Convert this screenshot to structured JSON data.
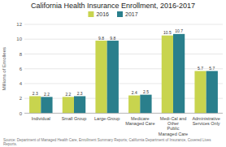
{
  "chart_data": {
    "type": "bar",
    "title": "California Health Insurance Enrollment, 2016-2017",
    "categories": [
      "Individual",
      "Small Group",
      "Large-Group",
      "Medicare\nManaged Care",
      "Medi-Cal and Other\nPublic Managed Care",
      "Administrative\nServices Only"
    ],
    "series": [
      {
        "name": "2016",
        "color": "#c8d44e",
        "values": [
          2.3,
          2.2,
          9.8,
          2.4,
          10.5,
          5.7
        ]
      },
      {
        "name": "2017",
        "color": "#2a7f8c",
        "values": [
          2.2,
          2.3,
          9.8,
          2.5,
          10.7,
          5.7
        ]
      }
    ],
    "ylabel": "Millions of Enrollees",
    "ylim": [
      0,
      12
    ],
    "yticks": [
      0,
      2,
      4,
      6,
      8,
      10,
      12
    ],
    "grid": true,
    "legend": "top",
    "data_labels": true,
    "source": "Source: Department of Managed Health Care, Enrollment Summary Reports; California Department of Insurance, Covered Lives Reports."
  }
}
